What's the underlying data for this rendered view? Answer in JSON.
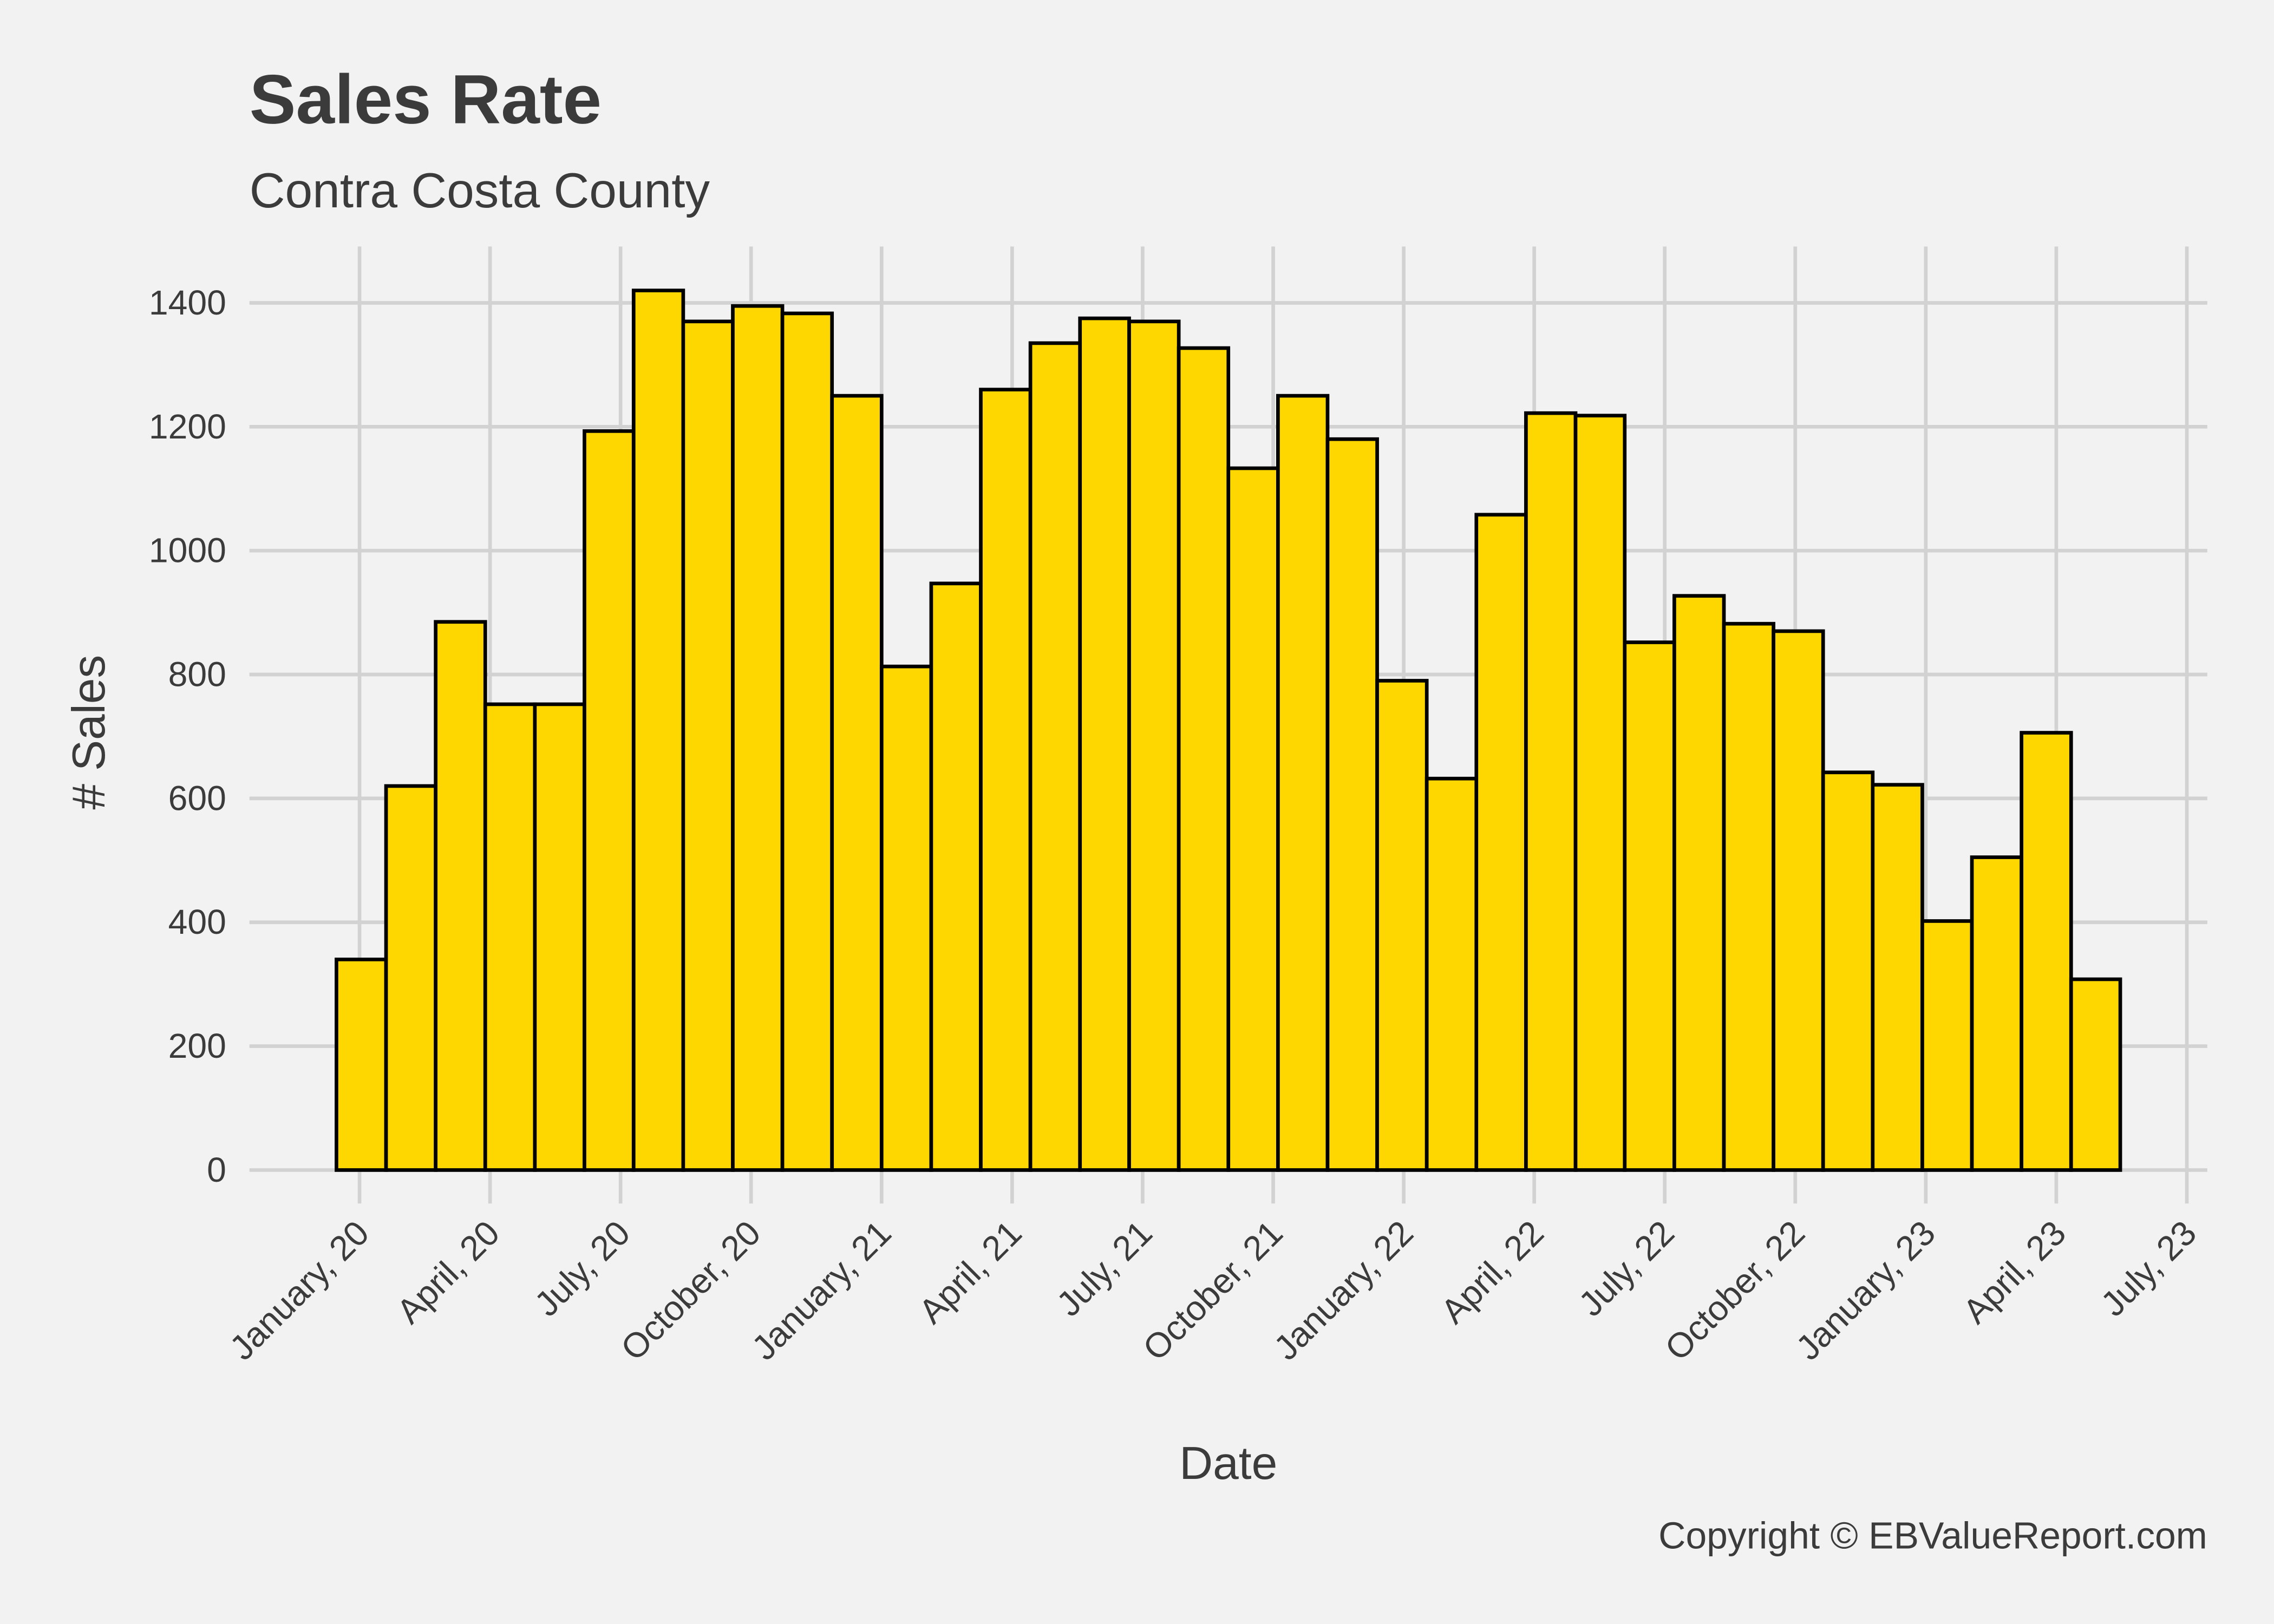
{
  "chart_data": {
    "type": "histogram",
    "title": "Sales Rate",
    "subtitle": "Contra Costa County",
    "x_label": "Date",
    "y_label": "# Sales",
    "caption": "Copyright  © EBValueReport.com",
    "bins": [
      -0.53,
      0.61,
      1.75,
      2.89,
      4.03,
      5.17,
      6.3,
      7.44,
      8.58,
      9.72,
      10.86,
      12.0,
      13.14,
      14.28,
      15.42,
      16.56,
      17.69,
      18.83,
      19.97,
      21.11,
      22.25,
      23.39,
      24.53,
      25.67,
      26.81,
      27.95,
      29.08,
      30.22,
      31.36,
      32.5,
      33.64,
      34.78,
      35.92,
      37.06,
      38.2,
      39.34,
      40.47
    ],
    "values": [
      340,
      620,
      885,
      752,
      752,
      1193,
      1420,
      1370,
      1395,
      1383,
      1250,
      813,
      947,
      1260,
      1335,
      1375,
      1370,
      1327,
      1133,
      1250,
      1180,
      790,
      632,
      1058,
      1222,
      1218,
      852,
      927,
      882,
      870,
      642,
      622,
      402,
      505,
      706,
      308
    ],
    "color": "#ffd700",
    "edge_color": "#000000",
    "xlim": [
      -2.53,
      42.47
    ],
    "ylim": [
      -54,
      1491
    ],
    "xticks": [
      {
        "value": 0,
        "label": "January, 20"
      },
      {
        "value": 3,
        "label": "April, 20"
      },
      {
        "value": 6,
        "label": "July, 20"
      },
      {
        "value": 9,
        "label": "October, 20"
      },
      {
        "value": 12,
        "label": "January, 21"
      },
      {
        "value": 15,
        "label": "April, 21"
      },
      {
        "value": 18,
        "label": "July, 21"
      },
      {
        "value": 21,
        "label": "October, 21"
      },
      {
        "value": 24,
        "label": "January, 22"
      },
      {
        "value": 27,
        "label": "April, 22"
      },
      {
        "value": 30,
        "label": "July, 22"
      },
      {
        "value": 33,
        "label": "October, 22"
      },
      {
        "value": 36,
        "label": "January, 23"
      },
      {
        "value": 39,
        "label": "April, 23"
      },
      {
        "value": 42,
        "label": "July, 23"
      }
    ],
    "yticks": [
      0,
      200,
      400,
      600,
      800,
      1000,
      1200,
      1400
    ],
    "grid": true
  }
}
